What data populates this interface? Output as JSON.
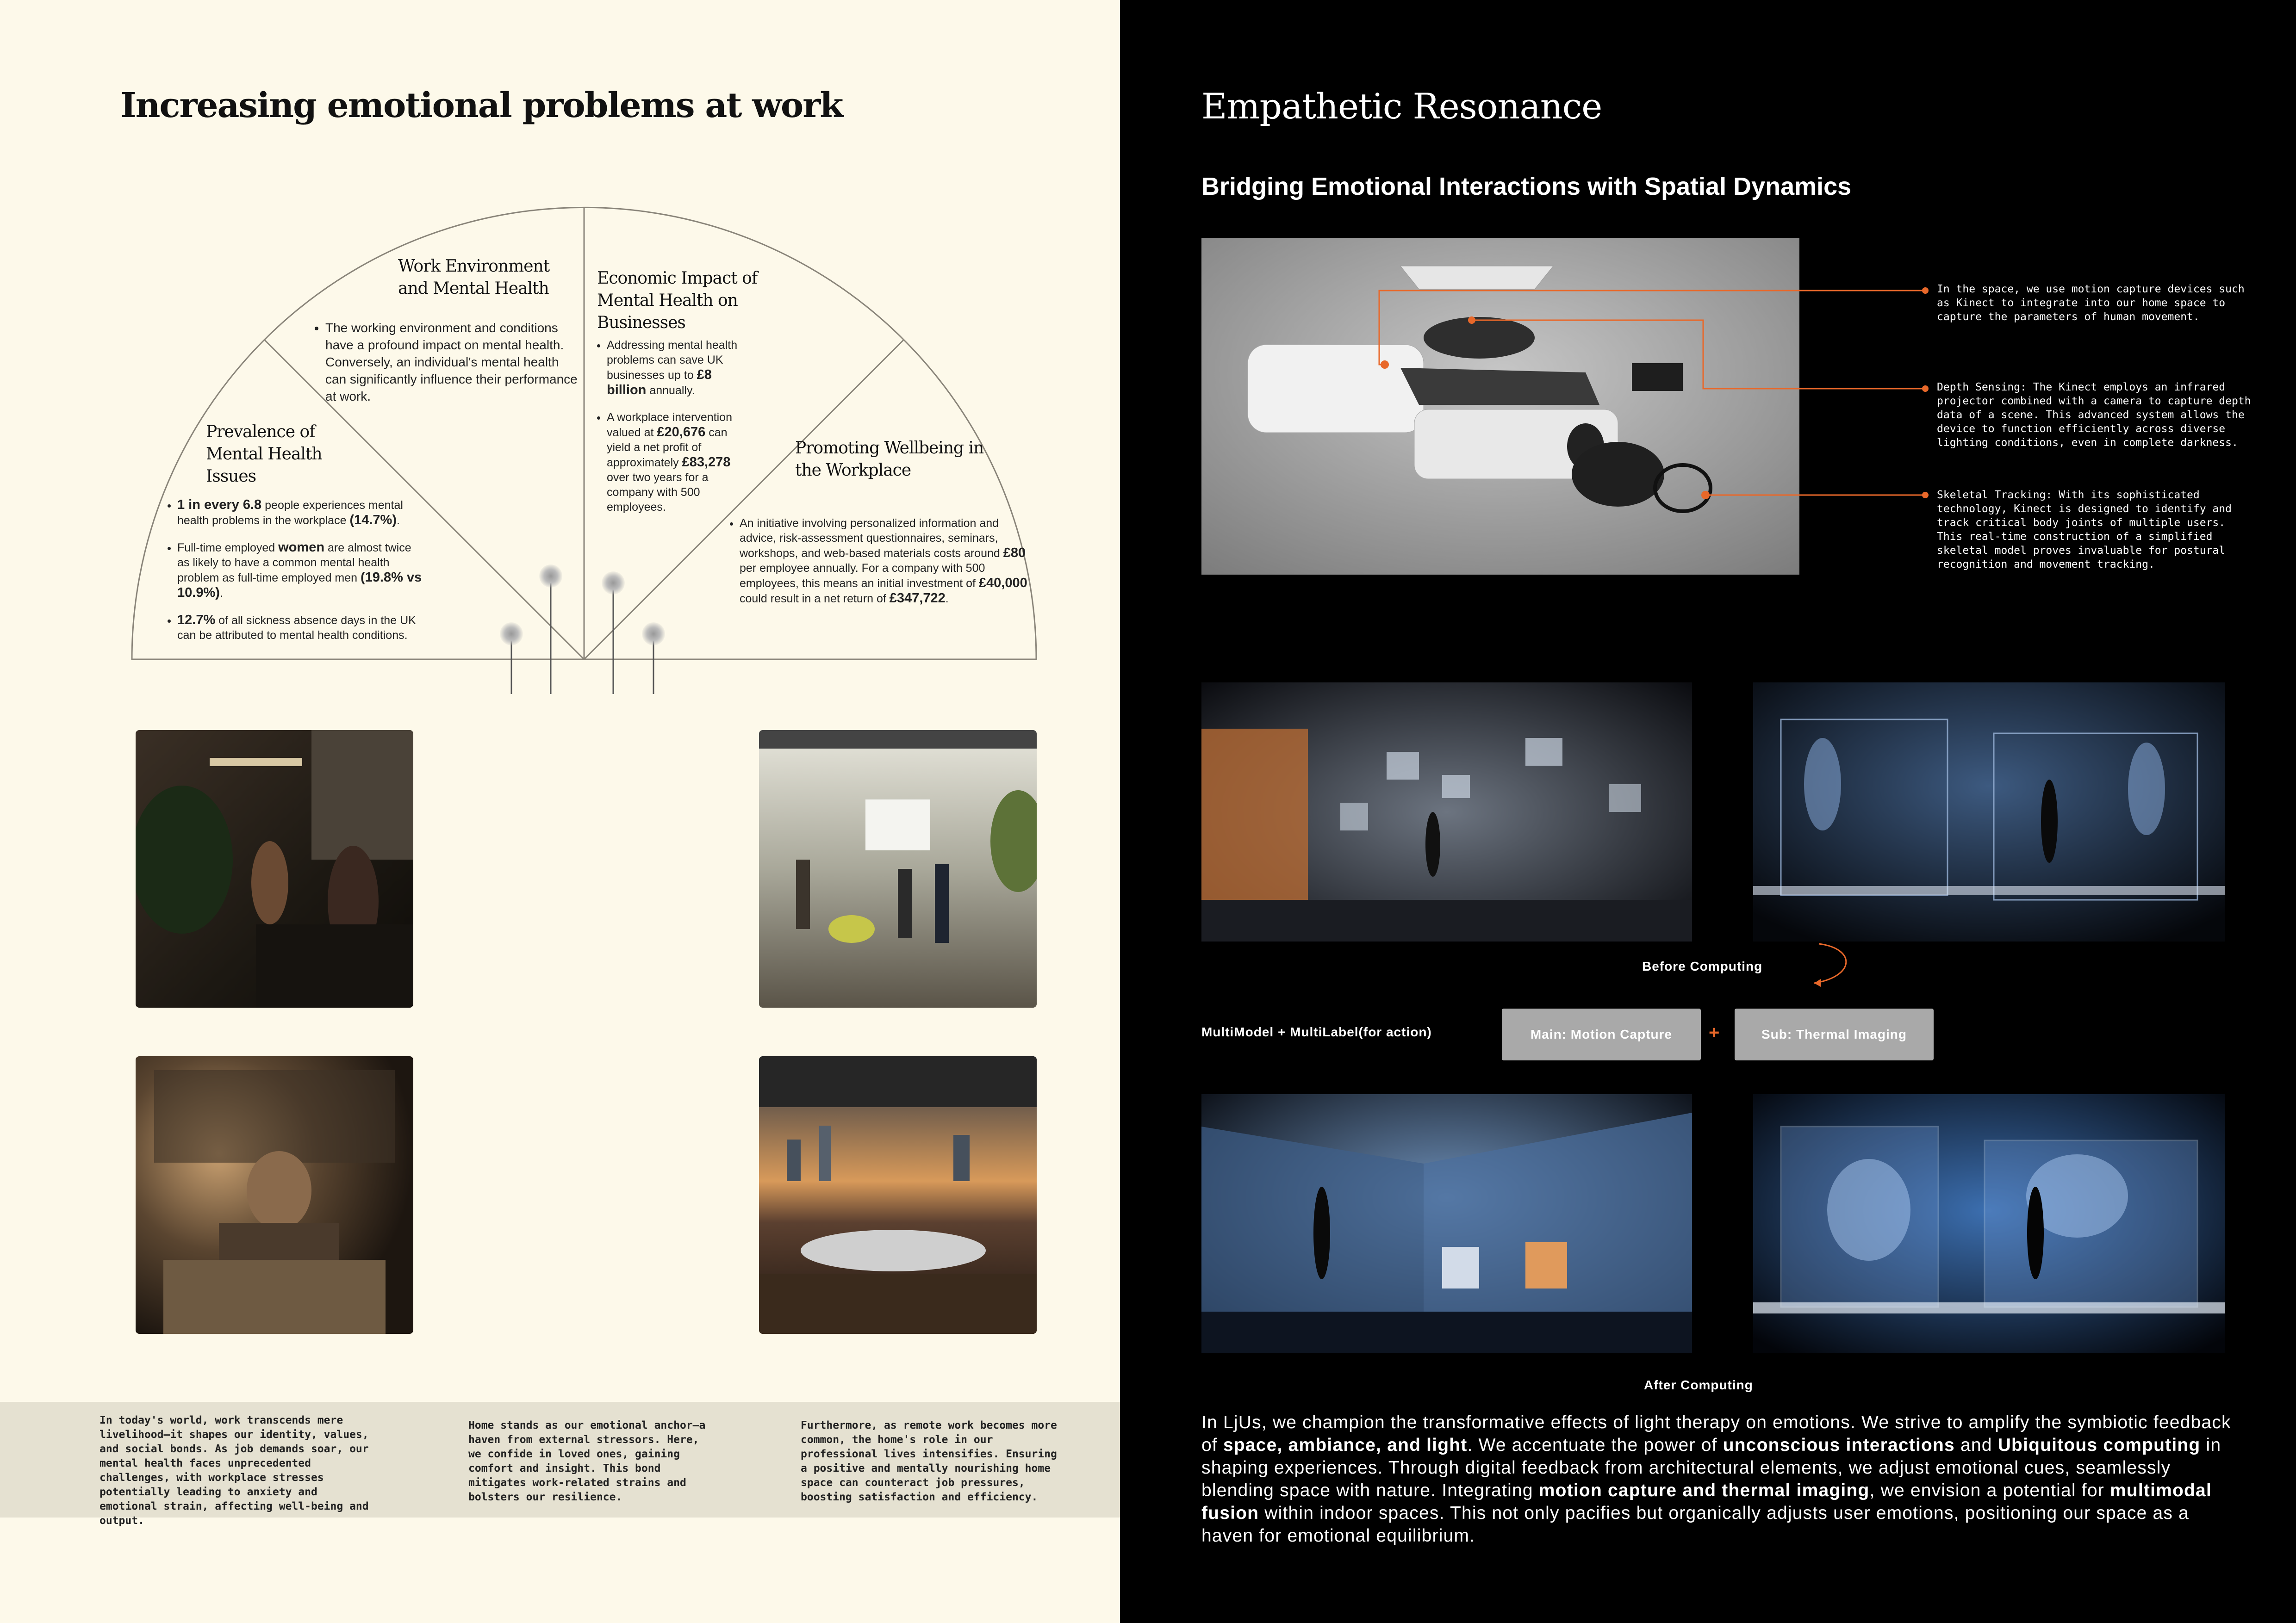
{
  "left": {
    "title": "Increasing emotional problems at work",
    "sections": {
      "work_env": {
        "title": "Work Environment and Mental Health",
        "bullets": [
          "The working environment and conditions have a profound impact on mental health. Conversely, an individual's mental health can significantly influence their performance at work."
        ]
      },
      "economic": {
        "title": "Economic Impact of Mental Health on Businesses",
        "b1_pre": "Addressing mental health problems can save UK businesses up to ",
        "b1_bold": "£8 billion",
        "b1_post": " annually.",
        "b2_pre": "A workplace intervention valued at ",
        "b2_bold1": "£20,676",
        "b2_mid": " can yield a net profit of approximately ",
        "b2_bold2": "£83,278",
        "b2_post": " over two years for a company with 500 employees."
      },
      "prevalence": {
        "title": "Prevalence of Mental Health Issues",
        "b1_bold": "1 in every 6.8",
        "b1_mid": " people experiences mental health problems in the workplace ",
        "b1_bold2": "(14.7%)",
        "b1_post": ".",
        "b2_pre": "Full-time employed ",
        "b2_bold": "women",
        "b2_mid": " are almost twice as likely to have a common mental health problem as full-time employed men ",
        "b2_bold2": "(19.8% vs 10.9%)",
        "b2_post": ".",
        "b3_bold": "12.7%",
        "b3_post": " of all sickness absence days in the UK can be attributed to mental health conditions."
      },
      "wellbeing": {
        "title": "Promoting Wellbeing in the Workplace",
        "b1_pre": "An initiative involving personalized information and advice, risk-assessment questionnaires, seminars, workshops, and web-based materials costs around ",
        "b1_bold1": "£80",
        "b1_mid": " per employee annually. For a company with 500 employees, this means an initial investment of ",
        "b1_bold2": "£40,000",
        "b1_mid2": " could result in a net return of ",
        "b1_bold3": "£347,722",
        "b1_post": "."
      }
    },
    "bottom": {
      "col1": "In today's world, work transcends mere livelihood—it shapes our identity, values, and social bonds. As job demands soar, our mental health faces unprecedented challenges, with workplace stresses potentially leading to anxiety and emotional strain, affecting well-being and output.",
      "col2": "Home stands as our emotional anchor—a haven from external stressors. Here, we confide in loved ones, gaining comfort and insight. This bond mitigates work-related strains and bolsters our resilience.",
      "col3": "Furthermore, as remote work becomes more common, the home's role in our professional lives intensifies. Ensuring a positive and mentally nourishing home space can counteract job pressures, boosting satisfaction and efficiency."
    }
  },
  "right": {
    "title": "Empathetic Resonance",
    "subtitle": "Bridging Emotional Interactions with Spatial Dynamics",
    "annotations": [
      "In the space, we use motion capture devices such as Kinect to integrate into our home space to capture the parameters of human movement.",
      "Depth Sensing: The Kinect employs an infrared projector combined with a camera to capture depth data of a scene. This advanced system allows the device to function efficiently across diverse lighting conditions, even in complete darkness.",
      "Skeletal Tracking: With its sophisticated technology, Kinect is designed to identify and track critical body joints of multiple users. This real-time construction of a simplified skeletal model proves invaluable for postural recognition and movement tracking."
    ],
    "before_label": "Before Computing",
    "after_label": "After Computing",
    "multimodel_label": "MultiModel + MultiLabel(for action)",
    "main_button": "Main: Motion Capture",
    "plus": "+",
    "sub_button": "Sub: Thermal Imaging",
    "para": {
      "p1": "In LjUs, we champion the transformative effects of light therapy on emotions. We strive to amplify the symbiotic feedback of ",
      "b1": "space, ambiance, and light",
      "p2": ". We accentuate the power of ",
      "b2": "unconscious interactions",
      "p3": " and ",
      "b3": "Ubiquitous computing",
      "p4": " in shaping experiences. Through digital feedback from architectural elements, we adjust emotional cues, seamlessly blending space with nature. Integrating ",
      "b4": "motion capture and thermal imaging",
      "p5": ", we envision a potential for ",
      "b5": "multimodal fusion",
      "p6": " within indoor spaces. This not only pacifies but organically adjusts user emotions, positioning our space as a haven for emotional equilibrium."
    },
    "colors": {
      "accent": "#e8682a",
      "button_gray": "#a9a9a9"
    }
  }
}
